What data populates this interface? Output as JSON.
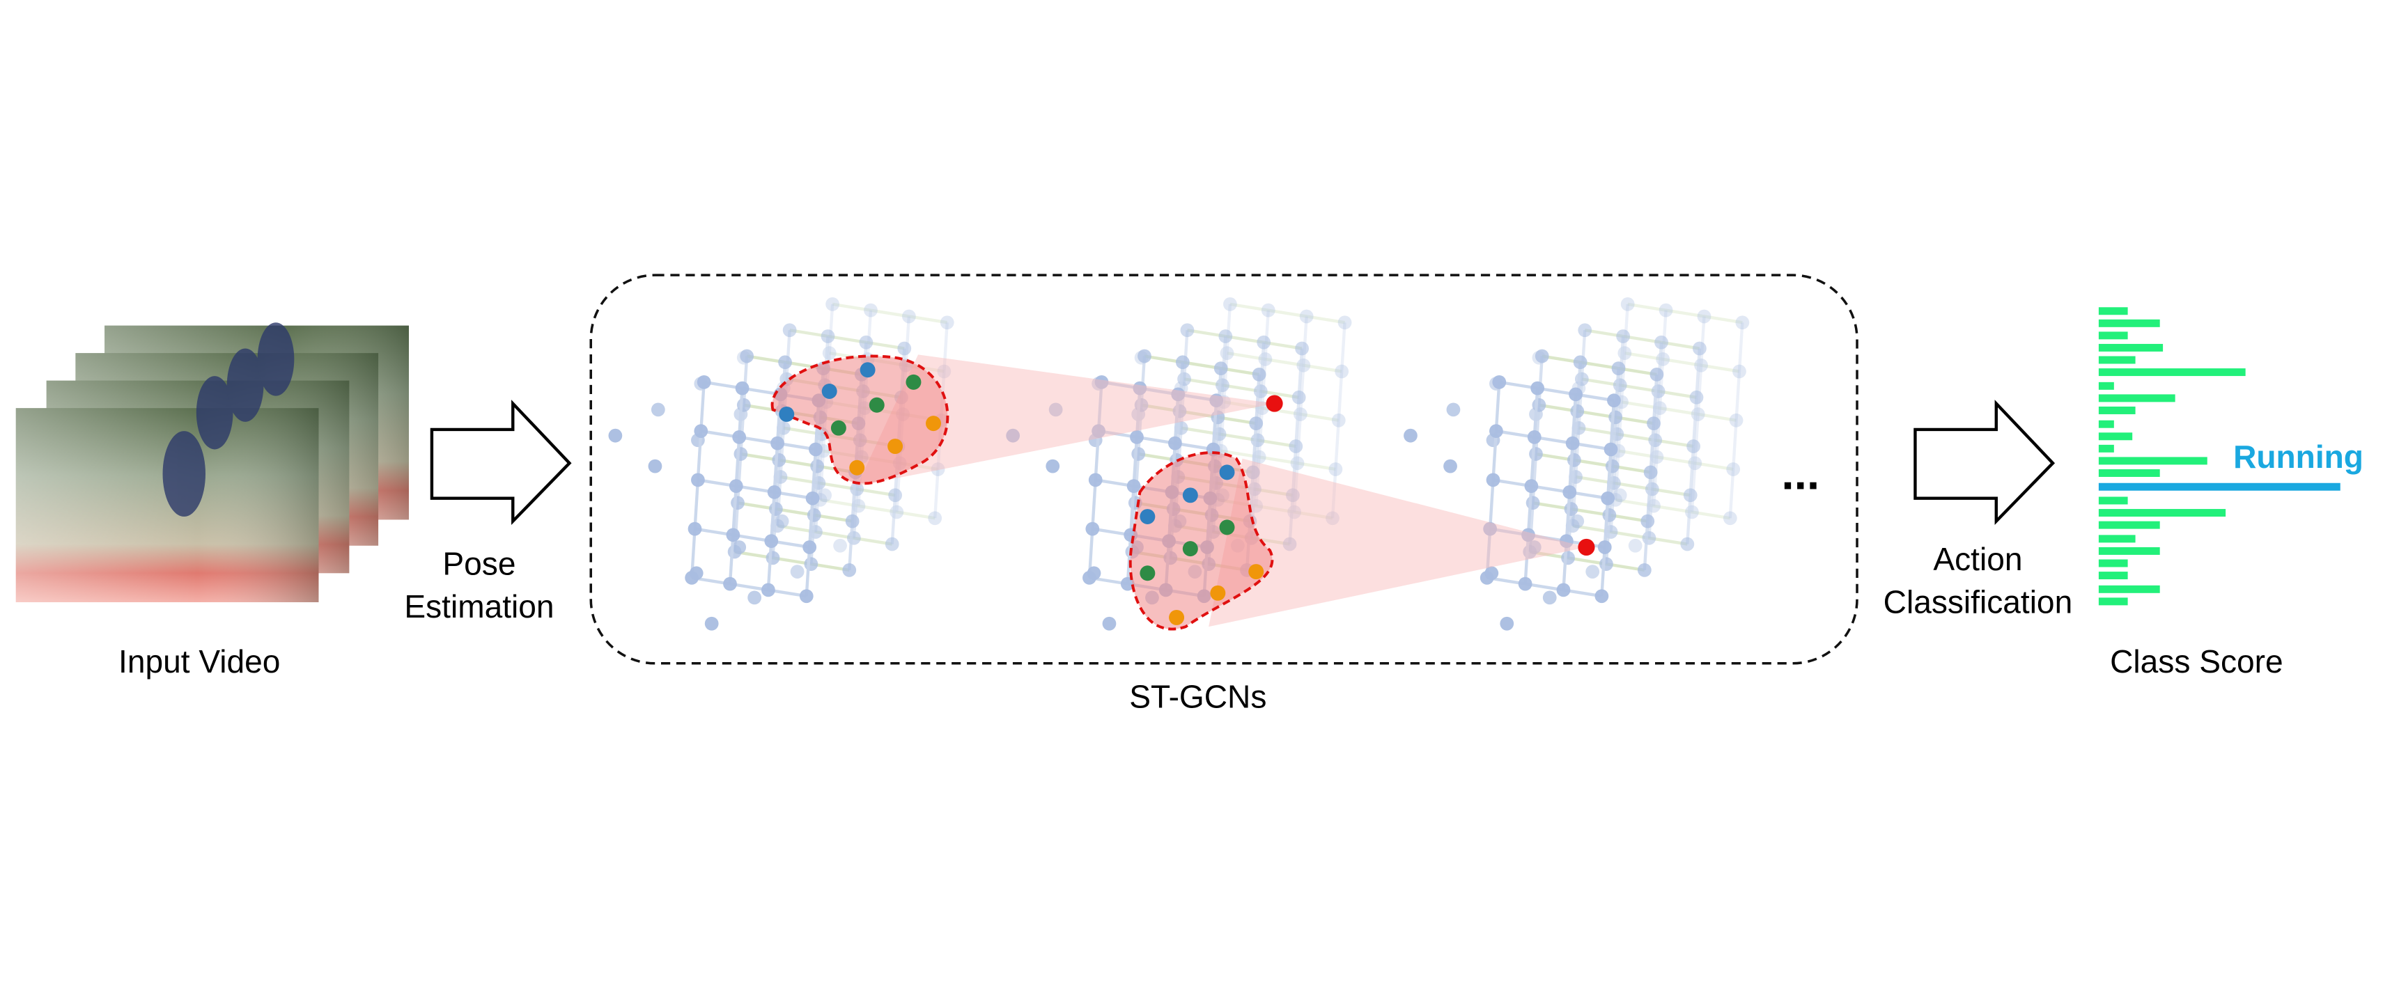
{
  "input": {
    "label": "Input Video"
  },
  "pose_step": {
    "lines": [
      "Pose",
      "Estimation"
    ]
  },
  "model": {
    "label": "ST-GCNs",
    "ellipsis": "..."
  },
  "action_step": {
    "lines": [
      "Action",
      "Classification"
    ]
  },
  "output": {
    "label": "Class Score",
    "predicted": "Running"
  }
}
